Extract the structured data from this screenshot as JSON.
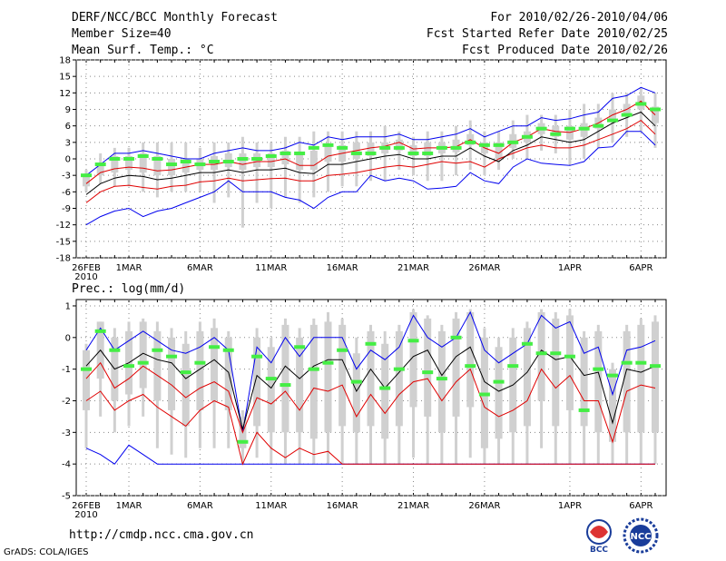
{
  "header": {
    "title": "DERF/NCC/BCC Monthly Forecast",
    "member_size": "Member Size=40",
    "variable": "Mean Surf. Temp.: °C",
    "period": "For 2010/02/26-2010/04/06",
    "started": "Fcst Started Refer Date 2010/02/25",
    "produced": "Fcst Produced Date 2010/02/26"
  },
  "footer": {
    "url": "http://cmdp.ncc.cma.gov.cn",
    "grads": "GrADS: COLA/IGES",
    "logo_bcc": "BCC",
    "logo_ncc": "NCC"
  },
  "colors": {
    "grid": "#888888",
    "box": "#d0d0d0",
    "mean": "#000000",
    "std": "#e00000",
    "extreme": "#0000ee",
    "median": "#44ee44"
  },
  "chart_data": [
    {
      "type": "box-plume",
      "title": "Mean Surf. Temp.: °C",
      "ylabel": "",
      "ylim": [
        -18,
        18
      ],
      "yticks": [
        18,
        15,
        12,
        9,
        6,
        3,
        0,
        -3,
        -6,
        -9,
        -12,
        -15,
        -18
      ],
      "xtick_labels": [
        {
          "day": 0,
          "label": "26FEB",
          "sub": "2010"
        },
        {
          "day": 3,
          "label": "1MAR"
        },
        {
          "day": 8,
          "label": "6MAR"
        },
        {
          "day": 13,
          "label": "11MAR"
        },
        {
          "day": 18,
          "label": "16MAR"
        },
        {
          "day": 23,
          "label": "21MAR"
        },
        {
          "day": 28,
          "label": "26MAR"
        },
        {
          "day": 34,
          "label": "1APR"
        },
        {
          "day": 39,
          "label": "6APR"
        }
      ],
      "series": [
        {
          "name": "max",
          "values": [
            -12,
            -10.5,
            -9.5,
            -9,
            -10.5,
            -9.5,
            -9,
            -8,
            -7,
            -6,
            -4,
            -6,
            -6,
            -6,
            -7,
            -7.5,
            -9,
            -7,
            -6,
            -6,
            -3,
            -4,
            -3.5,
            -4,
            -5.5,
            -5.3,
            -5,
            -2.5,
            -4,
            -4.5,
            -1.5,
            0,
            -0.8,
            -1,
            -1.2,
            -0.5,
            2,
            2.2,
            5,
            5,
            2.5
          ]
        },
        {
          "name": "mean_minus_std",
          "values": [
            -8,
            -6,
            -5,
            -4.8,
            -5.2,
            -5.5,
            -5,
            -4.8,
            -4.2,
            -4,
            -3.5,
            -4,
            -3.8,
            -3.6,
            -3.5,
            -4,
            -4,
            -3,
            -2.8,
            -2.5,
            -2,
            -1.5,
            -1.2,
            -1.5,
            -1,
            -0.5,
            -0.8,
            -0.5,
            -1.5,
            0,
            1,
            2,
            2.5,
            2,
            2,
            2.5,
            3.5,
            4.5,
            5.5,
            7,
            4.5
          ]
        },
        {
          "name": "mean",
          "values": [
            -6.5,
            -4.5,
            -3.5,
            -3,
            -3.2,
            -3.8,
            -3.5,
            -3,
            -2.5,
            -2.5,
            -2,
            -2.5,
            -2,
            -2,
            -1.7,
            -2.5,
            -2.7,
            -1,
            -1,
            -0.5,
            0,
            0.5,
            0.8,
            0,
            0,
            0.5,
            0.5,
            2,
            0.5,
            -0.5,
            1.5,
            2.5,
            4,
            3.5,
            3,
            3.5,
            5,
            6.5,
            7.5,
            8.5,
            6
          ]
        },
        {
          "name": "mean_plus_std",
          "values": [
            -4.5,
            -2.5,
            -1.8,
            -1.5,
            -1.7,
            -2.2,
            -2,
            -1.5,
            -1,
            -1,
            -0.5,
            -1,
            -0.5,
            -0.5,
            0,
            -1.2,
            -1.2,
            0.5,
            1,
            1.5,
            2,
            2.3,
            3,
            1.8,
            2,
            2,
            2.2,
            3.5,
            2,
            1,
            3,
            4,
            5.5,
            5,
            4.8,
            5.5,
            6.5,
            8,
            9,
            10.5,
            8
          ]
        },
        {
          "name": "min",
          "values": [
            -3,
            -1,
            1,
            1,
            1.5,
            1,
            0.5,
            0,
            0,
            1,
            1.5,
            2,
            1.5,
            1.5,
            2,
            3,
            2.5,
            4,
            3.5,
            4,
            4,
            4,
            4.5,
            3.5,
            3.5,
            4,
            4.5,
            5.5,
            4,
            5,
            6,
            6,
            7.5,
            7,
            7.3,
            8,
            8.5,
            11,
            11.5,
            13,
            12
          ]
        },
        {
          "name": "median",
          "values": [
            -3,
            -1,
            0,
            0,
            0.5,
            0,
            -1,
            -0.5,
            -1,
            -0.5,
            -0.5,
            0,
            0,
            0.5,
            1,
            1,
            2,
            2.5,
            2,
            1,
            1,
            2,
            2,
            1,
            1,
            2,
            2,
            3,
            2.5,
            2.5,
            3,
            4,
            5.5,
            4.5,
            5.5,
            5.5,
            6,
            7,
            8,
            10,
            9
          ]
        },
        {
          "name": "box_low",
          "values": [
            -5,
            -3,
            -2.5,
            -2,
            -2.5,
            -3,
            -3,
            -2.5,
            -2,
            -2,
            -1.5,
            -2,
            -1.5,
            -1.5,
            -1,
            -2,
            -2,
            -0.5,
            -0.5,
            0,
            0.5,
            1,
            1.5,
            0.5,
            0.5,
            1,
            1.2,
            2.5,
            1,
            0,
            2,
            3,
            4.5,
            4,
            3.5,
            4,
            5.5,
            7,
            8,
            9,
            6.5
          ]
        },
        {
          "name": "box_high",
          "values": [
            -3,
            -1,
            0.5,
            0.5,
            1,
            0.5,
            0,
            0,
            0,
            0.5,
            1,
            1,
            1,
            1,
            1.5,
            1,
            1.5,
            2.5,
            2.5,
            3,
            3,
            3,
            3.5,
            2.5,
            3,
            3,
            3.5,
            4.5,
            3,
            3,
            4.5,
            5,
            6.5,
            6,
            6,
            6.5,
            7.5,
            9,
            10,
            11.5,
            9.5
          ]
        },
        {
          "name": "whisker_low",
          "values": [
            -6,
            -4.5,
            -5,
            -5,
            -6,
            -7,
            -6,
            -6,
            -6,
            -8,
            -7,
            -12.5,
            -8,
            -9,
            -7,
            -8,
            -7,
            -6,
            -5,
            -5,
            -4,
            -4,
            -2,
            -3,
            -4,
            -4,
            -3,
            -2,
            -3,
            -2,
            0,
            0,
            1.5,
            1,
            -1,
            0,
            2,
            3,
            4,
            5,
            2
          ]
        },
        {
          "name": "whisker_high",
          "values": [
            -2,
            1,
            2,
            2,
            3,
            3,
            3,
            3,
            2,
            3,
            3,
            4,
            3,
            3,
            4,
            4,
            5,
            5,
            5,
            5,
            5,
            6,
            5,
            4,
            5,
            5,
            6,
            7,
            5,
            5,
            7,
            8,
            8,
            8,
            9,
            10,
            10,
            12,
            12,
            13,
            12
          ]
        }
      ]
    },
    {
      "type": "box-plume",
      "title": "Prec.: log(mm/d)",
      "ylabel": "",
      "ylim": [
        -5,
        1.2
      ],
      "yticks": [
        1,
        0,
        -1,
        -2,
        -3,
        -4,
        -5
      ],
      "xtick_labels": [
        {
          "day": 0,
          "label": "26FEB",
          "sub": "2010"
        },
        {
          "day": 3,
          "label": "1MAR"
        },
        {
          "day": 8,
          "label": "6MAR"
        },
        {
          "day": 13,
          "label": "11MAR"
        },
        {
          "day": 18,
          "label": "16MAR"
        },
        {
          "day": 23,
          "label": "21MAR"
        },
        {
          "day": 28,
          "label": "26MAR"
        },
        {
          "day": 34,
          "label": "1APR"
        },
        {
          "day": 39,
          "label": "6APR"
        }
      ],
      "series": [
        {
          "name": "min",
          "values": [
            -3.5,
            -3.7,
            -4,
            -3.4,
            -3.7,
            -4,
            -4,
            -4,
            -4,
            -4,
            -4,
            -4,
            -4,
            -4,
            -4,
            -4,
            -4,
            -4,
            -4,
            -4,
            -4,
            -4,
            -4,
            -4,
            -4,
            -4,
            -4,
            -4,
            -4,
            -4,
            -4,
            -4,
            -4,
            -4,
            -4,
            -4,
            -4,
            -4,
            -4,
            -4,
            -4
          ]
        },
        {
          "name": "mean_minus_std",
          "values": [
            -2,
            -1.7,
            -2.3,
            -2,
            -1.8,
            -2.2,
            -2.5,
            -2.8,
            -2.3,
            -2,
            -2.2,
            -4,
            -3,
            -3.5,
            -3.8,
            -3.5,
            -3.7,
            -3.6,
            -4,
            -4,
            -4,
            -4,
            -4,
            -4,
            -4,
            -4,
            -4,
            -4,
            -4,
            -4,
            -4,
            -4,
            -4,
            -4,
            -4,
            -4,
            -4,
            -4,
            -4,
            -4,
            -4
          ]
        },
        {
          "name": "mean_lower",
          "values": [
            -1.3,
            -0.8,
            -1.6,
            -1.3,
            -0.9,
            -1.2,
            -1.5,
            -1.9,
            -1.6,
            -1.4,
            -1.7,
            -3,
            -1.9,
            -2.1,
            -1.7,
            -2.3,
            -1.6,
            -1.7,
            -1.5,
            -2.5,
            -1.8,
            -2.4,
            -1.8,
            -1.4,
            -1.3,
            -2,
            -1.4,
            -1,
            -2.2,
            -2.5,
            -2.3,
            -2,
            -1,
            -1.6,
            -1.2,
            -2,
            -2,
            -3.3,
            -1.7,
            -1.5,
            -1.6
          ]
        },
        {
          "name": "mean",
          "values": [
            -0.9,
            -0.4,
            -1,
            -0.8,
            -0.5,
            -0.7,
            -0.8,
            -1.3,
            -1,
            -0.7,
            -1.1,
            -2.9,
            -1.2,
            -1.6,
            -0.9,
            -1.3,
            -0.9,
            -0.7,
            -0.7,
            -1.7,
            -1,
            -1.6,
            -1.1,
            -0.6,
            -0.4,
            -1.2,
            -0.6,
            -0.3,
            -1.4,
            -1.7,
            -1.5,
            -1.1,
            -0.4,
            -0.7,
            -0.6,
            -1.2,
            -1.1,
            -2.7,
            -1,
            -1.1,
            -0.9
          ]
        },
        {
          "name": "max",
          "values": [
            -0.4,
            0.3,
            -0.4,
            -0.1,
            0.2,
            -0.1,
            -0.4,
            -0.5,
            -0.3,
            0,
            -0.4,
            -3,
            -0.3,
            -0.8,
            0,
            -0.6,
            0,
            0,
            0,
            -1,
            -0.4,
            -0.7,
            -0.3,
            0.7,
            0,
            -0.3,
            0,
            0.8,
            -0.4,
            -0.8,
            -0.5,
            -0.2,
            0.7,
            0.3,
            0.5,
            -0.5,
            -0.3,
            -1.8,
            -0.4,
            -0.3,
            -0.1
          ]
        },
        {
          "name": "median",
          "values": [
            -1,
            0.2,
            -0.4,
            -0.9,
            -0.8,
            -0.4,
            -0.6,
            -1.1,
            -0.8,
            -0.3,
            -0.4,
            -3.3,
            -0.6,
            -1.3,
            -1.5,
            -0.3,
            -1,
            -0.8,
            -0.4,
            -1.4,
            -0.2,
            -1.6,
            -1,
            -0.1,
            -1.1,
            -1.3,
            0,
            -0.9,
            -1.8,
            -1.4,
            -0.9,
            -0.2,
            -0.5,
            -0.5,
            -0.6,
            -2.3,
            -1,
            -1.2,
            -0.8,
            -0.8,
            -0.9
          ]
        },
        {
          "name": "box_low",
          "values": [
            -2.3,
            -1.3,
            -2,
            -1.8,
            -1.6,
            -2,
            -2.3,
            -2.8,
            -2.3,
            -2,
            -2.3,
            -3.5,
            -2.8,
            -3,
            -3,
            -3,
            -3.2,
            -3,
            -2.8,
            -3,
            -2.8,
            -3.2,
            -2.8,
            -2.2,
            -2.5,
            -3,
            -2.5,
            -2.2,
            -3.5,
            -3.2,
            -3,
            -2.8,
            -2,
            -2.8,
            -2.3,
            -2.8,
            -3,
            -3.3,
            -3,
            -3,
            -3
          ]
        },
        {
          "name": "box_high",
          "values": [
            -0.4,
            0.5,
            0,
            0.2,
            0.5,
            0.2,
            0,
            -0.2,
            0.2,
            0.3,
            0,
            -2.5,
            0,
            -0.3,
            0.4,
            0,
            0.4,
            0.5,
            0.4,
            -0.5,
            0.2,
            -0.2,
            0.2,
            0.8,
            0.6,
            0.2,
            0.6,
            0.8,
            0,
            -0.3,
            0,
            0.3,
            0.8,
            0.6,
            0.7,
            0,
            0.2,
            -1,
            0.2,
            0.4,
            0.5
          ]
        },
        {
          "name": "whisker_low",
          "values": [
            -3.5,
            -2.5,
            -3,
            -2.8,
            -2.5,
            -3.5,
            -3.7,
            -3.8,
            -3.5,
            -3.5,
            -3.5,
            -4,
            -3.8,
            -4,
            -4,
            -4,
            -4,
            -4,
            -4,
            -4,
            -4,
            -4,
            -4,
            -3.8,
            -4,
            -4,
            -4,
            -3.8,
            -4,
            -4,
            -4,
            -4,
            -3.5,
            -4,
            -4,
            -4,
            -4,
            -4,
            -4,
            -4,
            -4
          ]
        },
        {
          "name": "whisker_high",
          "values": [
            -0.2,
            0.5,
            0.3,
            0.5,
            0.6,
            0.5,
            0.3,
            0.2,
            0.5,
            0.6,
            0.2,
            -2.3,
            0.3,
            0,
            0.6,
            0.3,
            0.6,
            0.8,
            0.6,
            0,
            0.4,
            0.2,
            0.4,
            0.9,
            0.7,
            0.4,
            0.8,
            0.9,
            0.3,
            0,
            0.3,
            0.5,
            0.9,
            0.8,
            0.9,
            0.2,
            0.4,
            -0.8,
            0.4,
            0.6,
            0.7
          ]
        }
      ]
    }
  ]
}
